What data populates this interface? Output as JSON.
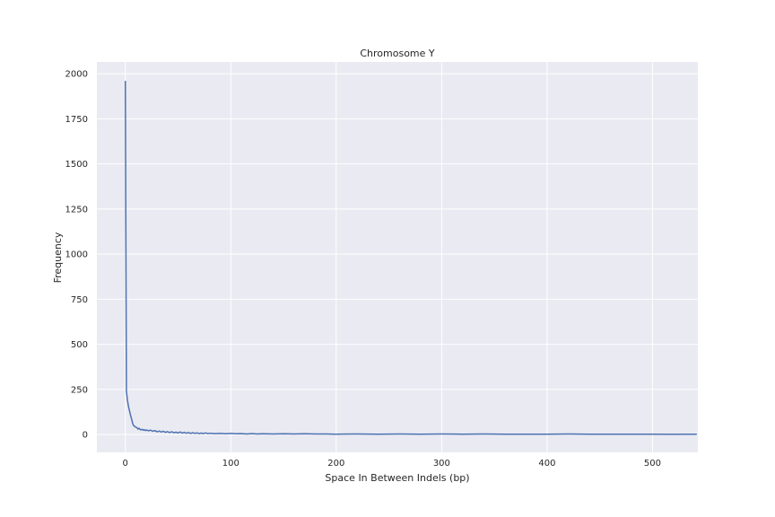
{
  "chart_data": {
    "type": "line",
    "title": "Chromosome Y",
    "xlabel": "Space In Between Indels (bp)",
    "ylabel": "Frequency",
    "xlim": [
      -27,
      543
    ],
    "ylim": [
      -99,
      2065
    ],
    "xticks": [
      0,
      100,
      200,
      300,
      400,
      500
    ],
    "yticks": [
      0,
      250,
      500,
      750,
      1000,
      1250,
      1500,
      1750,
      2000
    ],
    "grid": true,
    "legend": "none",
    "colors": {
      "plot_background": "#eaeaf2",
      "grid": "#ffffff",
      "line": "#4c72b0",
      "text": "#262626"
    },
    "series": [
      {
        "points": [
          [
            0,
            1960
          ],
          [
            1,
            240
          ],
          [
            2,
            190
          ],
          [
            3,
            155
          ],
          [
            4,
            130
          ],
          [
            5,
            105
          ],
          [
            6,
            85
          ],
          [
            7,
            60
          ],
          [
            8,
            48
          ],
          [
            9,
            45
          ],
          [
            10,
            40
          ],
          [
            11,
            38
          ],
          [
            12,
            30
          ],
          [
            13,
            35
          ],
          [
            14,
            28
          ],
          [
            15,
            26
          ],
          [
            16,
            29
          ],
          [
            17,
            24
          ],
          [
            18,
            27
          ],
          [
            19,
            22
          ],
          [
            20,
            25
          ],
          [
            22,
            21
          ],
          [
            24,
            24
          ],
          [
            26,
            18
          ],
          [
            28,
            22
          ],
          [
            30,
            15
          ],
          [
            32,
            19
          ],
          [
            34,
            14
          ],
          [
            36,
            18
          ],
          [
            38,
            12
          ],
          [
            40,
            16
          ],
          [
            42,
            11
          ],
          [
            44,
            15
          ],
          [
            46,
            10
          ],
          [
            48,
            13
          ],
          [
            50,
            9
          ],
          [
            52,
            14
          ],
          [
            54,
            8
          ],
          [
            56,
            12
          ],
          [
            58,
            7
          ],
          [
            60,
            11
          ],
          [
            62,
            6
          ],
          [
            64,
            10
          ],
          [
            66,
            6
          ],
          [
            68,
            9
          ],
          [
            70,
            5
          ],
          [
            72,
            8
          ],
          [
            74,
            5
          ],
          [
            76,
            9
          ],
          [
            78,
            5
          ],
          [
            80,
            7
          ],
          [
            85,
            5
          ],
          [
            90,
            6
          ],
          [
            95,
            4
          ],
          [
            100,
            6
          ],
          [
            105,
            4
          ],
          [
            110,
            5
          ],
          [
            115,
            3
          ],
          [
            120,
            5
          ],
          [
            125,
            3
          ],
          [
            130,
            4
          ],
          [
            140,
            3
          ],
          [
            150,
            4
          ],
          [
            160,
            3
          ],
          [
            170,
            4
          ],
          [
            180,
            3
          ],
          [
            190,
            3
          ],
          [
            200,
            2
          ],
          [
            220,
            3
          ],
          [
            240,
            2
          ],
          [
            260,
            3
          ],
          [
            280,
            2
          ],
          [
            300,
            3
          ],
          [
            320,
            2
          ],
          [
            340,
            3
          ],
          [
            360,
            2
          ],
          [
            380,
            2
          ],
          [
            400,
            2
          ],
          [
            420,
            3
          ],
          [
            440,
            2
          ],
          [
            460,
            2
          ],
          [
            480,
            2
          ],
          [
            500,
            2
          ],
          [
            520,
            1
          ],
          [
            542,
            2
          ]
        ]
      }
    ]
  }
}
